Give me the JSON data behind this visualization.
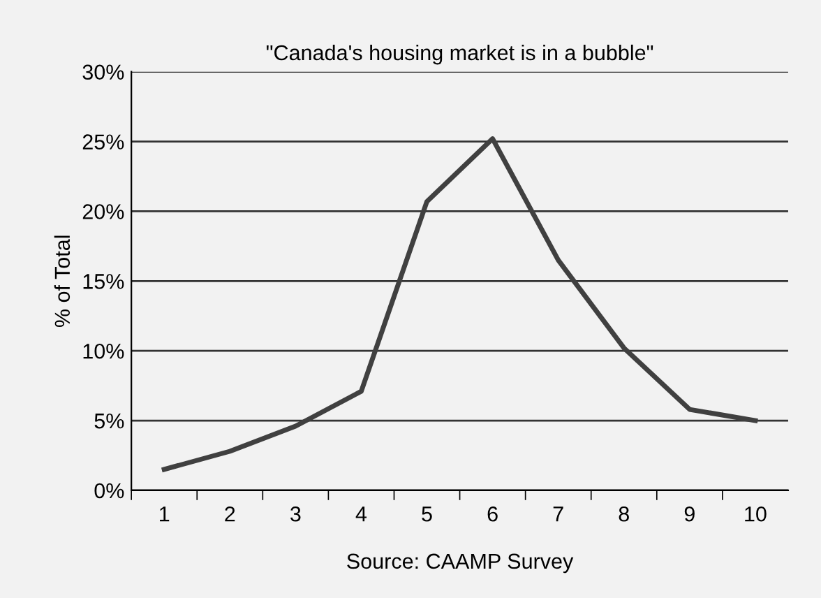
{
  "chart_data": {
    "type": "line",
    "title": "\"Canada's housing market is in a bubble\"",
    "ylabel": "% of Total",
    "categories": [
      "1",
      "2",
      "3",
      "4",
      "5",
      "6",
      "7",
      "8",
      "9",
      "10"
    ],
    "series": [
      {
        "color": "#404040",
        "values": [
          1.5,
          2.8,
          4.6,
          7.1,
          20.7,
          25.2,
          16.5,
          10.2,
          5.8,
          5.0
        ]
      }
    ],
    "ylim": [
      0,
      30
    ],
    "yticks": [
      {
        "value": 0,
        "label": "0%"
      },
      {
        "value": 5,
        "label": "5%"
      },
      {
        "value": 10,
        "label": "10%"
      },
      {
        "value": 15,
        "label": "15%"
      },
      {
        "value": 20,
        "label": "20%"
      },
      {
        "value": 25,
        "label": "25%"
      },
      {
        "value": 30,
        "label": "30%"
      }
    ],
    "grid": "y",
    "marker": "none",
    "line_style": "solid",
    "annotations": [
      "Source: CAAMP Survey"
    ]
  }
}
